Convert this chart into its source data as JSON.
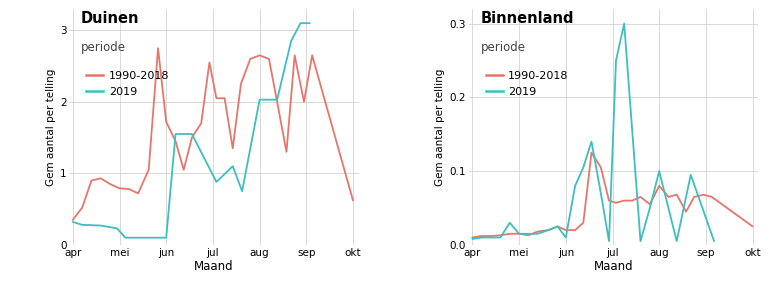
{
  "x_labels": [
    "apr",
    "mei",
    "jun",
    "jul",
    "aug",
    "sep",
    "okt"
  ],
  "x_tick_pos": [
    0,
    4,
    8,
    12,
    16,
    20,
    24
  ],
  "x_lim": [
    -0.3,
    24.5
  ],
  "duinen": {
    "title": "Duinen",
    "subtitle": "periode",
    "ylabel": "Gem aantal per telling",
    "xlabel": "Maand",
    "ylim": [
      0,
      3.3
    ],
    "yticks": [
      0,
      1,
      2,
      3
    ],
    "ytick_labels": [
      "0",
      "1",
      "2",
      "3"
    ],
    "x_1990": [
      0,
      0.8,
      1.6,
      2.4,
      3.2,
      4.0,
      4.8,
      5.6,
      6.5,
      7.3,
      8.0,
      8.8,
      9.5,
      10.2,
      11.0,
      11.7,
      12.3,
      13.0,
      13.7,
      14.4,
      15.2,
      16.0,
      16.8,
      17.5,
      18.3,
      19.0,
      19.8,
      20.5,
      24.0
    ],
    "y_1990": [
      0.35,
      0.52,
      0.9,
      0.93,
      0.85,
      0.79,
      0.78,
      0.72,
      1.05,
      2.75,
      1.72,
      1.45,
      1.05,
      1.5,
      1.7,
      2.55,
      2.05,
      2.05,
      1.35,
      2.25,
      2.6,
      2.65,
      2.6,
      2.0,
      1.3,
      2.65,
      2.0,
      2.65,
      0.62
    ],
    "x_2019": [
      0,
      0.8,
      2.4,
      3.8,
      4.5,
      8.0,
      8.8,
      10.2,
      12.3,
      13.7,
      14.5,
      16.0,
      17.5,
      18.7,
      19.5,
      20.3
    ],
    "y_2019": [
      0.32,
      0.28,
      0.27,
      0.23,
      0.1,
      0.1,
      1.55,
      1.55,
      0.88,
      1.1,
      0.75,
      2.03,
      2.03,
      2.85,
      3.1,
      3.1
    ]
  },
  "binnenland": {
    "title": "Binnenland",
    "subtitle": "periode",
    "ylabel": "Gem aantal per telling",
    "xlabel": "Maand",
    "ylim": [
      0,
      0.32
    ],
    "yticks": [
      0.0,
      0.1,
      0.2,
      0.3
    ],
    "ytick_labels": [
      "0.0",
      "0.1",
      "0.2",
      "0.3"
    ],
    "x_1990": [
      0,
      0.8,
      1.6,
      2.4,
      3.2,
      4.0,
      4.8,
      5.6,
      6.5,
      7.3,
      8.0,
      8.8,
      9.5,
      10.2,
      11.0,
      11.7,
      12.3,
      13.0,
      13.7,
      14.4,
      15.2,
      16.0,
      16.8,
      17.5,
      18.3,
      19.0,
      19.8,
      20.5,
      24.0
    ],
    "y_1990": [
      0.01,
      0.012,
      0.012,
      0.013,
      0.015,
      0.015,
      0.013,
      0.018,
      0.02,
      0.025,
      0.02,
      0.02,
      0.03,
      0.125,
      0.105,
      0.06,
      0.057,
      0.06,
      0.06,
      0.065,
      0.055,
      0.08,
      0.065,
      0.068,
      0.045,
      0.065,
      0.068,
      0.065,
      0.025
    ],
    "x_2019": [
      0,
      0.8,
      1.6,
      2.4,
      3.2,
      4.0,
      5.6,
      6.5,
      7.3,
      8.0,
      8.8,
      9.5,
      10.2,
      11.0,
      11.7,
      12.3,
      13.0,
      14.4,
      15.2,
      16.0,
      17.5,
      18.7,
      20.7
    ],
    "y_2019": [
      0.008,
      0.01,
      0.01,
      0.01,
      0.03,
      0.015,
      0.015,
      0.02,
      0.025,
      0.01,
      0.08,
      0.105,
      0.14,
      0.07,
      0.005,
      0.25,
      0.3,
      0.005,
      0.05,
      0.1,
      0.005,
      0.095,
      0.005
    ]
  },
  "color_1990": "#E8756A",
  "color_2019": "#3DBFBF",
  "legend_labels": [
    "1990-2018",
    "2019"
  ],
  "bg_color": "#FFFFFF",
  "plot_bg_color": "#FFFFFF",
  "grid_color": "#D3D3D3",
  "linewidth": 1.3
}
